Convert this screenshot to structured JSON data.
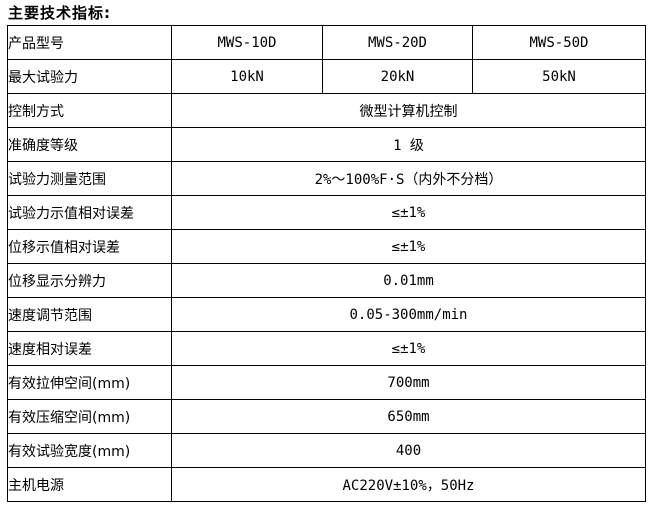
{
  "page": {
    "title": "主要技术指标:"
  },
  "table": {
    "model_row": {
      "label": "产品型号",
      "values": [
        "MWS-10D",
        "MWS-20D",
        "MWS-50D"
      ]
    },
    "force_row": {
      "label": "最大试验力",
      "values": [
        "10kN",
        "20kN",
        "50kN"
      ]
    },
    "rows": [
      {
        "label": "控制方式",
        "value": "微型计算机控制"
      },
      {
        "label": "准确度等级",
        "value": "1 级"
      },
      {
        "label": "试验力测量范围",
        "value": "2%～100%F·S（内外不分档）"
      },
      {
        "label": "试验力示值相对误差",
        "value": "≤±1%"
      },
      {
        "label": "位移示值相对误差",
        "value": "≤±1%"
      },
      {
        "label": "位移显示分辨力",
        "value": "0.01mm"
      },
      {
        "label": "速度调节范围",
        "value": "0.05-300mm/min"
      },
      {
        "label": "速度相对误差",
        "value": "≤±1%"
      },
      {
        "label": "有效拉伸空间(mm)",
        "value": "700mm"
      },
      {
        "label": "有效压缩空间(mm)",
        "value": "650mm"
      },
      {
        "label": "有效试验宽度(mm)",
        "value": "400"
      },
      {
        "label": "主机电源",
        "value": "AC220V±10%，50Hz"
      }
    ]
  }
}
